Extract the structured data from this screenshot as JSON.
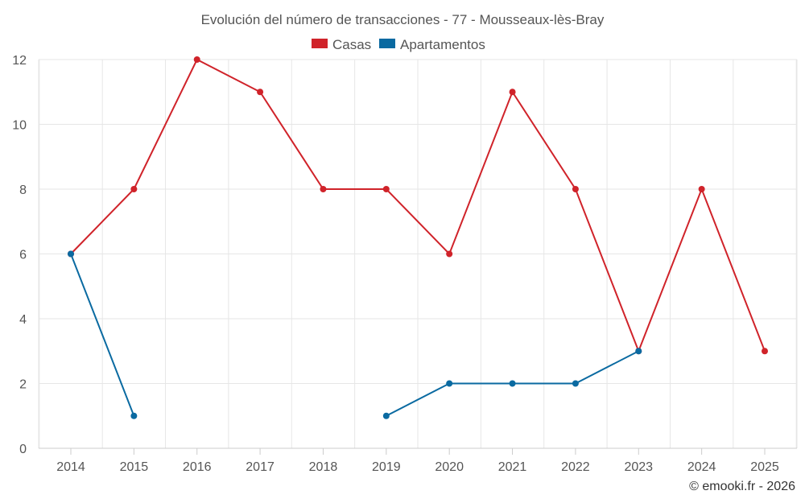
{
  "chart_data": {
    "type": "line",
    "title": "Evolución del número de transacciones - 77 - Mousseaux-lès-Bray",
    "categories": [
      "2014",
      "2015",
      "2016",
      "2017",
      "2018",
      "2019",
      "2020",
      "2021",
      "2022",
      "2023",
      "2024",
      "2025"
    ],
    "series": [
      {
        "name": "Casas",
        "color": "#d0232a",
        "values": [
          6,
          8,
          12,
          11,
          8,
          8,
          6,
          11,
          8,
          3,
          8,
          3
        ]
      },
      {
        "name": "Apartamentos",
        "color": "#0a6aa1",
        "values": [
          6,
          1,
          null,
          null,
          null,
          1,
          2,
          2,
          2,
          3,
          null,
          null
        ]
      }
    ],
    "ylim": [
      0,
      12
    ],
    "yticks": [
      0,
      2,
      4,
      6,
      8,
      10,
      12
    ],
    "grid": true,
    "legend_position": "top-center",
    "xlabel": "",
    "ylabel": ""
  },
  "credit": "© emooki.fr - 2026"
}
